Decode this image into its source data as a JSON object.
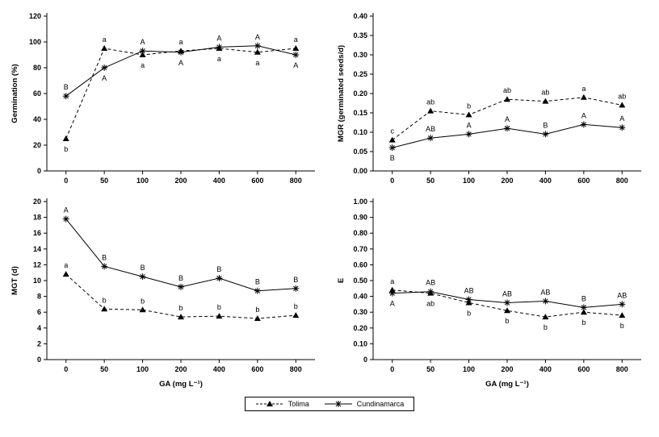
{
  "legend": {
    "items": [
      {
        "label": "Tolima",
        "marker": "triangle",
        "line": "dashed"
      },
      {
        "label": "Cundinamarca",
        "marker": "asterisk",
        "line": "solid"
      }
    ]
  },
  "chart_data": [
    {
      "id": "germination",
      "type": "line",
      "title": "",
      "ylabel": "Germination (%)",
      "xlabel": "",
      "ylim": [
        0,
        120
      ],
      "yticks": [
        0,
        20,
        40,
        60,
        80,
        100,
        120
      ],
      "ytick_labels": [
        "0",
        "20",
        "40",
        "60",
        "80",
        "100",
        "120"
      ],
      "categories": [
        "0",
        "50",
        "100",
        "200",
        "400",
        "600",
        "800"
      ],
      "series": [
        {
          "name": "Tolima",
          "marker": "triangle",
          "line": "dashed",
          "values": [
            25,
            95,
            90,
            93,
            95,
            92,
            95
          ],
          "point_labels": [
            {
              "text": "b",
              "pos": "below"
            },
            {
              "text": "a",
              "pos": "above"
            },
            {
              "text": "a",
              "pos": "below"
            },
            {
              "text": "a",
              "pos": "above"
            },
            {
              "text": "a",
              "pos": "below"
            },
            {
              "text": "a",
              "pos": "below"
            },
            {
              "text": "a",
              "pos": "above"
            }
          ]
        },
        {
          "name": "Cundinamarca",
          "marker": "asterisk",
          "line": "solid",
          "values": [
            58,
            80,
            93,
            92,
            96,
            97,
            90
          ],
          "point_labels": [
            {
              "text": "B",
              "pos": "above"
            },
            {
              "text": "A",
              "pos": "below"
            },
            {
              "text": "A",
              "pos": "above"
            },
            {
              "text": "A",
              "pos": "below"
            },
            {
              "text": "A",
              "pos": "above"
            },
            {
              "text": "A",
              "pos": "above"
            },
            {
              "text": "A",
              "pos": "below"
            }
          ]
        }
      ]
    },
    {
      "id": "mgr",
      "type": "line",
      "title": "",
      "ylabel": "MGR (germinated seeds/d)",
      "xlabel": "",
      "ylim": [
        0,
        0.4
      ],
      "yticks": [
        0,
        0.05,
        0.1,
        0.15,
        0.2,
        0.25,
        0.3,
        0.35,
        0.4
      ],
      "ytick_labels": [
        "0.00",
        "0.05",
        "0.10",
        "0.15",
        "0.20",
        "0.25",
        "0.30",
        "0.35",
        "0.40"
      ],
      "categories": [
        "0",
        "50",
        "100",
        "200",
        "400",
        "600",
        "800"
      ],
      "series": [
        {
          "name": "Tolima",
          "marker": "triangle",
          "line": "dashed",
          "values": [
            0.08,
            0.155,
            0.145,
            0.185,
            0.18,
            0.19,
            0.17
          ],
          "point_labels": [
            {
              "text": "c",
              "pos": "above"
            },
            {
              "text": "ab",
              "pos": "above"
            },
            {
              "text": "b",
              "pos": "above"
            },
            {
              "text": "ab",
              "pos": "above"
            },
            {
              "text": "ab",
              "pos": "above"
            },
            {
              "text": "a",
              "pos": "above"
            },
            {
              "text": "ab",
              "pos": "above"
            }
          ]
        },
        {
          "name": "Cundinamarca",
          "marker": "asterisk",
          "line": "solid",
          "values": [
            0.06,
            0.085,
            0.095,
            0.11,
            0.095,
            0.12,
            0.112
          ],
          "point_labels": [
            {
              "text": "B",
              "pos": "below"
            },
            {
              "text": "AB",
              "pos": "above"
            },
            {
              "text": "A",
              "pos": "above"
            },
            {
              "text": "A",
              "pos": "above"
            },
            {
              "text": "B",
              "pos": "above"
            },
            {
              "text": "A",
              "pos": "above"
            },
            {
              "text": "A",
              "pos": "above"
            }
          ]
        }
      ]
    },
    {
      "id": "mgt",
      "type": "line",
      "title": "",
      "ylabel": "MGT (d)",
      "xlabel": "GA (mg L⁻¹)",
      "ylim": [
        0,
        20
      ],
      "yticks": [
        0,
        2,
        4,
        6,
        8,
        10,
        12,
        14,
        16,
        18,
        20
      ],
      "ytick_labels": [
        "0",
        "2",
        "4",
        "6",
        "8",
        "10",
        "12",
        "14",
        "16",
        "18",
        "20"
      ],
      "categories": [
        "0",
        "50",
        "100",
        "200",
        "400",
        "600",
        "800"
      ],
      "series": [
        {
          "name": "Tolima",
          "marker": "triangle",
          "line": "dashed",
          "values": [
            10.8,
            6.4,
            6.3,
            5.4,
            5.5,
            5.2,
            5.6
          ],
          "point_labels": [
            {
              "text": "a",
              "pos": "above"
            },
            {
              "text": "b",
              "pos": "above"
            },
            {
              "text": "b",
              "pos": "above"
            },
            {
              "text": "b",
              "pos": "above"
            },
            {
              "text": "b",
              "pos": "above"
            },
            {
              "text": "b",
              "pos": "above"
            },
            {
              "text": "b",
              "pos": "above"
            }
          ]
        },
        {
          "name": "Cundinamarca",
          "marker": "asterisk",
          "line": "solid",
          "values": [
            17.8,
            11.8,
            10.5,
            9.2,
            10.3,
            8.7,
            9.0
          ],
          "point_labels": [
            {
              "text": "A",
              "pos": "above"
            },
            {
              "text": "B",
              "pos": "above"
            },
            {
              "text": "B",
              "pos": "above"
            },
            {
              "text": "B",
              "pos": "above"
            },
            {
              "text": "B",
              "pos": "above"
            },
            {
              "text": "B",
              "pos": "above"
            },
            {
              "text": "B",
              "pos": "above"
            }
          ]
        }
      ]
    },
    {
      "id": "e-index",
      "type": "line",
      "title": "",
      "ylabel": "E",
      "xlabel": "GA (mg L⁻¹)",
      "ylim": [
        0,
        1.0
      ],
      "yticks": [
        0,
        0.1,
        0.2,
        0.3,
        0.4,
        0.5,
        0.6,
        0.7,
        0.8,
        0.9,
        1.0
      ],
      "ytick_labels": [
        "0",
        "0.10",
        "0.20",
        "0.30",
        "0.40",
        "0.50",
        "0.60",
        "0.70",
        "0.80",
        "0.90",
        "1.00"
      ],
      "categories": [
        "0",
        "50",
        "100",
        "200",
        "400",
        "600",
        "800"
      ],
      "series": [
        {
          "name": "Tolima",
          "marker": "triangle",
          "line": "dashed",
          "values": [
            0.44,
            0.42,
            0.36,
            0.31,
            0.27,
            0.3,
            0.28
          ],
          "point_labels": [
            {
              "text": "a",
              "pos": "above"
            },
            {
              "text": "ab",
              "pos": "below"
            },
            {
              "text": "b",
              "pos": "below"
            },
            {
              "text": "b",
              "pos": "below"
            },
            {
              "text": "b",
              "pos": "below"
            },
            {
              "text": "b",
              "pos": "below"
            },
            {
              "text": "b",
              "pos": "below"
            }
          ]
        },
        {
          "name": "Cundinamarca",
          "marker": "asterisk",
          "line": "solid",
          "values": [
            0.42,
            0.43,
            0.38,
            0.36,
            0.37,
            0.33,
            0.35
          ],
          "point_labels": [
            {
              "text": "A",
              "pos": "below"
            },
            {
              "text": "AB",
              "pos": "above"
            },
            {
              "text": "AB",
              "pos": "above"
            },
            {
              "text": "AB",
              "pos": "above"
            },
            {
              "text": "AB",
              "pos": "above"
            },
            {
              "text": "B",
              "pos": "above"
            },
            {
              "text": "AB",
              "pos": "above"
            }
          ]
        }
      ]
    }
  ]
}
